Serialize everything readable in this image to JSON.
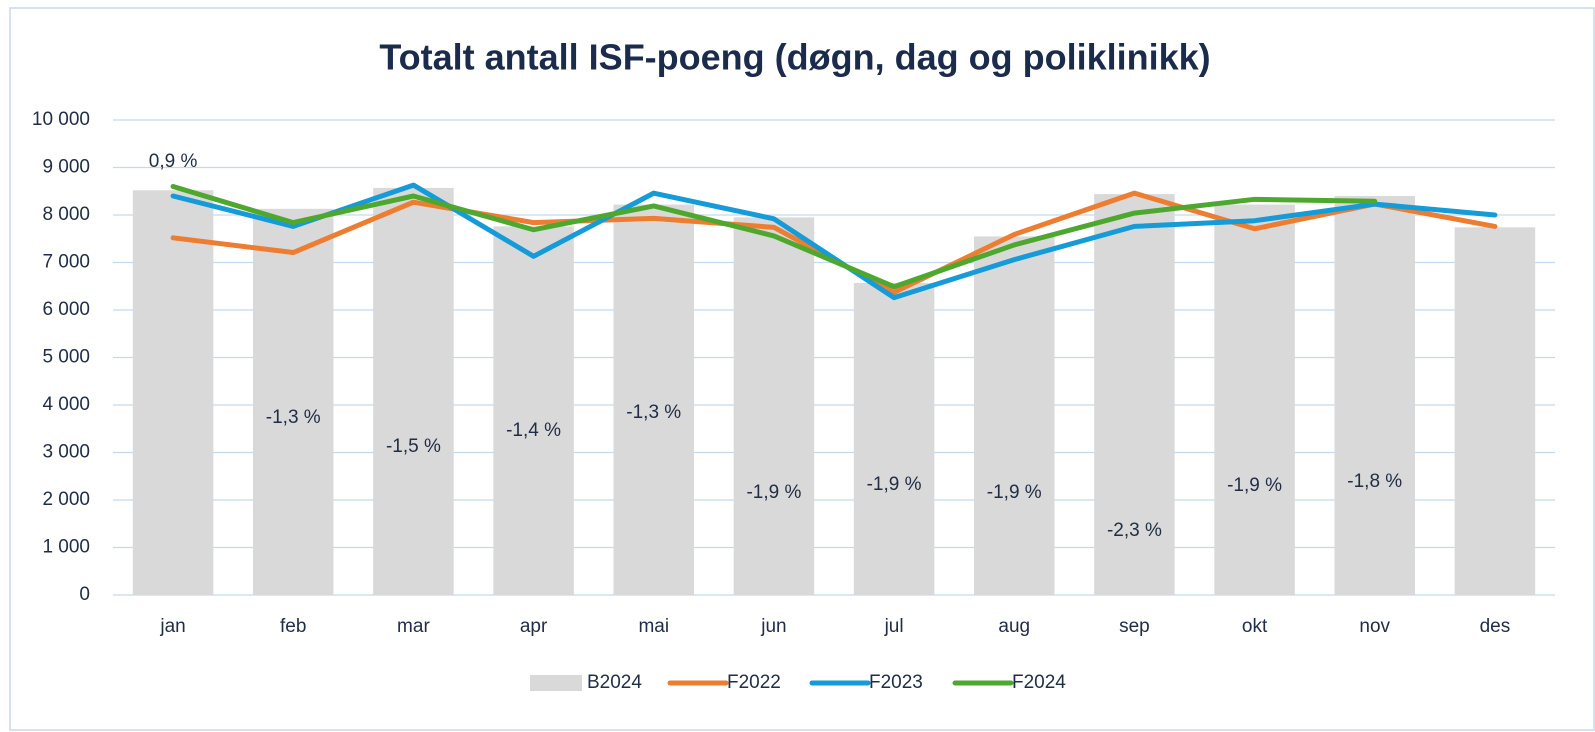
{
  "chart_data": {
    "type": "bar_line",
    "title": "Totalt antall ISF-poeng (døgn, dag og poliklinikk)",
    "categories": [
      "jan",
      "feb",
      "mar",
      "apr",
      "mai",
      "jun",
      "jul",
      "aug",
      "sep",
      "okt",
      "nov",
      "des"
    ],
    "series": [
      {
        "name": "B2024",
        "type": "bar",
        "color": "#d9d9d9",
        "values": [
          8520,
          8130,
          8570,
          7760,
          8220,
          7950,
          6570,
          7550,
          8440,
          8220,
          8400,
          7740
        ]
      },
      {
        "name": "F2022",
        "type": "line",
        "color": "#ed7d31",
        "values": [
          7520,
          7210,
          8270,
          7840,
          7930,
          7740,
          6370,
          7590,
          8460,
          7710,
          8230,
          7760
        ]
      },
      {
        "name": "F2023",
        "type": "line",
        "color": "#159bd7",
        "values": [
          8400,
          7760,
          8630,
          7130,
          8460,
          7920,
          6260,
          7060,
          7760,
          7880,
          8230,
          8000
        ]
      },
      {
        "name": "F2024",
        "type": "line",
        "color": "#4ea72e",
        "values": [
          8600,
          7840,
          8400,
          7690,
          8190,
          7560,
          6490,
          7370,
          8040,
          8330,
          8290,
          null
        ]
      }
    ],
    "annotations": [
      "0,9 %",
      "-1,3 %",
      "-1,5 %",
      "-1,4 %",
      "-1,3 %",
      "-1,9 %",
      "-1,9 %",
      "-1,9 %",
      "-2,3 %",
      "-1,9 %",
      "-1,8 %",
      null
    ],
    "ylim": [
      0,
      10000
    ],
    "yticks": [
      0,
      {
        "value": 1000,
        "label": "1 000"
      },
      {
        "value": 2000,
        "label": "2 000"
      },
      {
        "value": 3000,
        "label": "3 000"
      },
      {
        "value": 4000,
        "label": "4 000"
      },
      {
        "value": 5000,
        "label": "5 000"
      },
      {
        "value": 6000,
        "label": "6 000"
      },
      {
        "value": 7000,
        "label": "7 000"
      },
      {
        "value": 8000,
        "label": "8 000"
      },
      {
        "value": 9000,
        "label": "9 000"
      },
      {
        "value": 10000,
        "label": "10 000"
      }
    ],
    "grid": true,
    "legend": "bottom"
  }
}
